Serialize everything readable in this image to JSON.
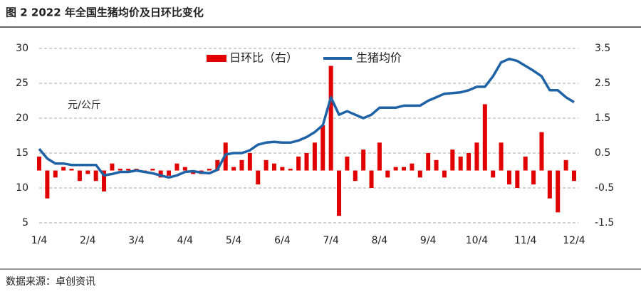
{
  "chart_data": {
    "type": "combo",
    "title": "图 2 2022 年全国生猪均价及日环比变化",
    "y_label": "元/公斤",
    "source": "数据来源：卓创资讯",
    "categories": [
      "1/4",
      null,
      null,
      null,
      null,
      null,
      "2/4",
      null,
      null,
      null,
      null,
      null,
      "3/4",
      null,
      null,
      null,
      null,
      null,
      "4/4",
      null,
      null,
      null,
      null,
      null,
      "5/4",
      null,
      null,
      null,
      null,
      null,
      "6/4",
      null,
      null,
      null,
      null,
      null,
      "7/4",
      null,
      null,
      null,
      null,
      null,
      "8/4",
      null,
      null,
      null,
      null,
      null,
      "9/4",
      null,
      null,
      null,
      null,
      null,
      "10/4",
      null,
      null,
      null,
      null,
      null,
      "11/4",
      null,
      null,
      null,
      null,
      null,
      "12/4"
    ],
    "series": [
      {
        "name": "日环比（右）",
        "type": "bar",
        "axis": "y2",
        "color": "#e00000",
        "values": [
          0.4,
          -0.8,
          -0.2,
          0.1,
          0.05,
          -0.3,
          -0.1,
          -0.3,
          -0.6,
          0.2,
          0.05,
          0.05,
          0.05,
          -0.05,
          0.05,
          -0.2,
          -0.15,
          0.2,
          0.1,
          -0.1,
          -0.1,
          0.05,
          0.3,
          0.8,
          0.1,
          0.3,
          0.5,
          -0.4,
          0.3,
          0.2,
          0.1,
          0.05,
          0.4,
          0.5,
          0.8,
          1.3,
          3.0,
          -1.3,
          0.4,
          -0.3,
          0.6,
          -0.5,
          0.8,
          -0.2,
          0.1,
          0.1,
          0.2,
          -0.2,
          0.5,
          0.3,
          -0.2,
          0.6,
          0.4,
          0.5,
          0.8,
          1.9,
          -0.2,
          0.8,
          -0.4,
          -0.5,
          0.4,
          -0.4,
          1.1,
          -0.8,
          -1.2,
          0.3,
          -0.3
        ]
      },
      {
        "name": "生猪均价",
        "type": "line",
        "color": "#1f62a6",
        "values": [
          15.6,
          14.2,
          13.5,
          13.5,
          13.3,
          13.3,
          13.3,
          13.3,
          11.8,
          12.0,
          12.3,
          12.3,
          12.5,
          12.3,
          12.1,
          11.8,
          11.5,
          11.8,
          12.3,
          12.4,
          12.2,
          12.1,
          12.6,
          14.8,
          15.0,
          15.0,
          15.4,
          16.2,
          16.5,
          16.6,
          16.5,
          16.5,
          16.8,
          17.3,
          18.0,
          19.0,
          23.0,
          20.5,
          21.0,
          20.5,
          20.0,
          20.5,
          21.5,
          21.5,
          21.5,
          21.8,
          21.8,
          21.8,
          22.5,
          23.0,
          23.5,
          23.6,
          23.7,
          24.0,
          24.5,
          24.5,
          26.0,
          28.0,
          28.5,
          28.2,
          27.5,
          26.8,
          26.0,
          24.0,
          24.0,
          23.0,
          22.3
        ]
      }
    ],
    "ylim": [
      5,
      30
    ],
    "yticks": [
      5,
      10,
      15,
      20,
      25,
      30
    ],
    "y2lim": [
      -1.5,
      3.5
    ],
    "y2ticks": [
      -1.5,
      -0.5,
      0.5,
      1.5,
      2.5,
      3.5
    ],
    "grid": true
  }
}
